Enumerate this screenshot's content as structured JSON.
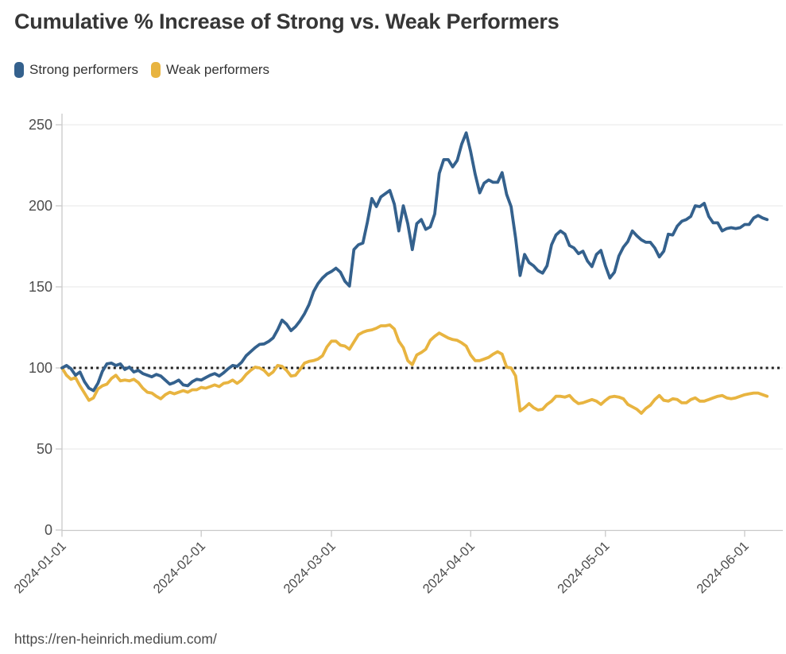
{
  "title": "Cumulative % Increase of Strong vs. Weak Performers",
  "footer_url": "https://ren-heinrich.medium.com/",
  "colors": {
    "strong": "#34618d",
    "weak": "#e8b440",
    "title_text": "#363636",
    "axis_label": "#4d4d4d",
    "gridline": "#ececec",
    "axis_line": "#c9c9c9",
    "baseline_dotted": "#222222",
    "background": "#ffffff"
  },
  "legend": {
    "items": [
      {
        "label": "Strong performers",
        "color": "#34618d"
      },
      {
        "label": "Weak performers",
        "color": "#e8b440"
      }
    ]
  },
  "chart_data": {
    "type": "line",
    "title": "Cumulative % Increase of Strong vs. Weak Performers",
    "xlabel": "",
    "ylabel": "",
    "x_start_date": "2024-01-01",
    "x_unit": "days_since_start",
    "point_spacing": "daily (value index = day offset from 2024-01-01)",
    "xlim_days": [
      0,
      160.5
    ],
    "ylim": [
      0,
      250
    ],
    "y_ticks": [
      0,
      50,
      100,
      150,
      200,
      250
    ],
    "x_ticks": [
      {
        "day": 0,
        "label": "2024-01-01"
      },
      {
        "day": 31,
        "label": "2024-02-01"
      },
      {
        "day": 60,
        "label": "2024-03-01"
      },
      {
        "day": 91,
        "label": "2024-04-01"
      },
      {
        "day": 121,
        "label": "2024-05-01"
      },
      {
        "day": 152,
        "label": "2024-06-01"
      }
    ],
    "grid": "horizontal",
    "legend_position": "top-left",
    "baseline": {
      "value": 100,
      "style": "dotted",
      "color": "#222222"
    },
    "series": [
      {
        "name": "Strong performers",
        "color": "#34618d",
        "line_width": 3.8,
        "values": [
          100,
          101.5,
          99.5,
          95.5,
          97.5,
          91.5,
          87.5,
          86,
          90.5,
          98,
          102.5,
          103,
          101.5,
          102.5,
          99,
          100.5,
          97.5,
          98.5,
          96.5,
          95.5,
          94.5,
          96,
          95,
          92.5,
          90,
          91,
          92.5,
          89.5,
          89,
          91.5,
          93,
          92.5,
          94,
          95.5,
          96.5,
          95,
          97,
          99.5,
          101.5,
          101,
          103.5,
          107.5,
          110,
          112.5,
          114.5,
          114.8,
          116.3,
          118.5,
          123.5,
          129.5,
          127,
          123,
          125.5,
          129,
          133.5,
          139,
          147,
          152,
          155.5,
          158,
          159.5,
          161.5,
          159,
          153.5,
          150.5,
          173,
          176,
          177,
          190,
          204.5,
          199.5,
          205.5,
          207.5,
          209.5,
          201,
          184.5,
          200,
          189,
          173,
          189,
          191.5,
          185.5,
          187,
          195,
          220,
          228.5,
          228.5,
          224,
          228,
          238,
          245,
          233.5,
          219.5,
          208,
          214,
          216,
          214.5,
          214.5,
          220.5,
          207,
          199.5,
          180,
          157,
          170,
          165,
          163,
          160,
          158.5,
          163,
          176,
          182,
          184.5,
          182.5,
          175.5,
          174,
          170.5,
          172,
          166,
          162.5,
          170,
          172.5,
          163,
          155.5,
          159,
          169,
          174.5,
          178,
          184.5,
          181.5,
          179,
          177.5,
          177.5,
          174,
          168.5,
          172,
          182.5,
          182,
          187.5,
          190.5,
          191.5,
          193.5,
          200,
          199.5,
          201.5,
          193.5,
          189.5,
          189.5,
          184.5,
          186,
          186.5,
          186,
          186.5,
          188.5,
          188.5,
          192.5,
          194,
          192.5,
          191.5
        ]
      },
      {
        "name": "Weak performers",
        "color": "#e8b440",
        "line_width": 3.8,
        "values": [
          100,
          95.5,
          93,
          94,
          89,
          84.5,
          80,
          81.5,
          87,
          89,
          90,
          93.5,
          95.5,
          92,
          92.5,
          92,
          93,
          91,
          87.5,
          85,
          84.5,
          82.5,
          81,
          83.5,
          85,
          84,
          85,
          86,
          85,
          86.5,
          86.5,
          88,
          87.5,
          88.5,
          89.5,
          88.5,
          90.5,
          91,
          92.5,
          90.5,
          92.5,
          96,
          98.5,
          100.5,
          100,
          98.5,
          95.5,
          97.5,
          101.5,
          101,
          98.5,
          95,
          95.5,
          99,
          103,
          104,
          104.5,
          105.5,
          107.5,
          113,
          116.5,
          116.5,
          114,
          113.5,
          111.5,
          116,
          120.5,
          122,
          123,
          123.5,
          124.5,
          126,
          126,
          126.5,
          124,
          116.5,
          112.5,
          104.5,
          102,
          108,
          109.5,
          111.5,
          117,
          119.5,
          121.5,
          120,
          118.5,
          117.5,
          117,
          115.5,
          113.5,
          108,
          104.5,
          104.5,
          105.5,
          106.5,
          108.5,
          110,
          108.5,
          100.5,
          100,
          95,
          73.5,
          75.5,
          78,
          75.5,
          74,
          74.5,
          77.5,
          79.5,
          82.5,
          82.5,
          82,
          83,
          80,
          78,
          78.5,
          79.5,
          80.5,
          79.5,
          77.5,
          80,
          82,
          82.5,
          82,
          81,
          77.5,
          76,
          74.5,
          72,
          75,
          77,
          80.5,
          83,
          80,
          79.5,
          81,
          80.5,
          78.5,
          78.5,
          80.5,
          81.5,
          79.5,
          79.5,
          80.5,
          81.5,
          82.5,
          83,
          81.5,
          81,
          81.5,
          82.5,
          83.5,
          84,
          84.5,
          84.5,
          83.5,
          82.5
        ]
      }
    ]
  }
}
